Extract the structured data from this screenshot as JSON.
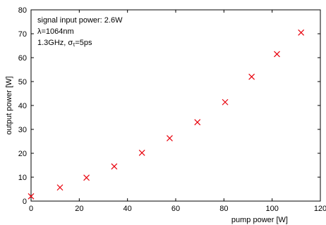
{
  "chart_data": {
    "type": "scatter",
    "xlabel": "pump power [W]",
    "ylabel": "output power [W]",
    "xlim": [
      0,
      120
    ],
    "ylim": [
      0,
      80
    ],
    "xticks": [
      "0",
      "20",
      "40",
      "60",
      "80",
      "100",
      "120"
    ],
    "yticks": [
      "0",
      "10",
      "20",
      "30",
      "40",
      "50",
      "60",
      "70",
      "80"
    ],
    "grid": false,
    "marker": "x",
    "marker_color": "#e8000b",
    "annotations": [
      {
        "label": "signal input power: 2.6W"
      },
      {
        "prefix": "λ",
        "value": "=1064nm"
      },
      {
        "value": "1.3GHz, ",
        "sigma": "σ",
        "sub": "τ",
        "rest": "=5ps"
      }
    ],
    "x": [
      0,
      12,
      23,
      34.5,
      46,
      57.5,
      69,
      80.5,
      91.5,
      102,
      112
    ],
    "y": [
      2,
      5.7,
      9.8,
      14.5,
      20.2,
      26.3,
      33,
      41.4,
      52,
      61.5,
      70.5
    ]
  }
}
